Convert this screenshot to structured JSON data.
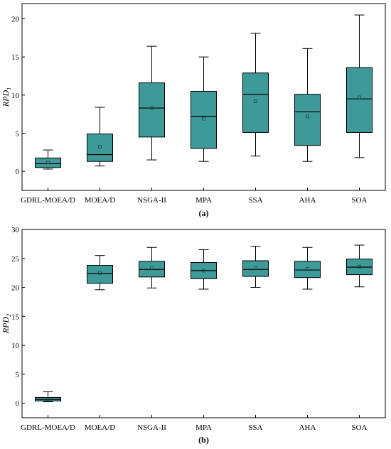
{
  "colors": {
    "box_fill": "#3e9a98",
    "stroke": "#000000",
    "background": "#ffffff"
  },
  "chart_data": [
    {
      "type": "box",
      "panel_label": "(a)",
      "ylabel_main": "RPD",
      "ylabel_sub": "1",
      "ylim": [
        -2.5,
        22
      ],
      "yticks": [
        0,
        5,
        10,
        15,
        20
      ],
      "categories": [
        "GDRL-MOEA/D",
        "MOEA/D",
        "NSGA-II",
        "MPA",
        "SSA",
        "AHA",
        "SOA"
      ],
      "boxes": [
        {
          "whisker_low": 0.3,
          "q1": 0.5,
          "median": 1.0,
          "q3": 1.75,
          "whisker_high": 2.8,
          "mean": 1.15
        },
        {
          "whisker_low": 0.7,
          "q1": 1.3,
          "median": 2.2,
          "q3": 4.9,
          "whisker_high": 8.4,
          "mean": 3.2
        },
        {
          "whisker_low": 1.5,
          "q1": 4.5,
          "median": 8.3,
          "q3": 11.6,
          "whisker_high": 16.4,
          "mean": 8.3
        },
        {
          "whisker_low": 1.3,
          "q1": 3.0,
          "median": 7.2,
          "q3": 10.5,
          "whisker_high": 15.0,
          "mean": 6.9
        },
        {
          "whisker_low": 2.0,
          "q1": 5.1,
          "median": 10.1,
          "q3": 12.9,
          "whisker_high": 18.1,
          "mean": 9.2
        },
        {
          "whisker_low": 1.3,
          "q1": 3.4,
          "median": 7.8,
          "q3": 10.1,
          "whisker_high": 16.1,
          "mean": 7.2
        },
        {
          "whisker_low": 1.8,
          "q1": 5.1,
          "median": 9.5,
          "q3": 13.6,
          "whisker_high": 20.5,
          "mean": 9.7
        }
      ]
    },
    {
      "type": "box",
      "panel_label": "(b)",
      "ylabel_main": "RPD",
      "ylabel_sub": "2",
      "ylim": [
        -2.5,
        30
      ],
      "yticks": [
        0,
        5,
        10,
        15,
        20,
        25,
        30
      ],
      "categories": [
        "GDRL-MOEA/D",
        "MOEA/D",
        "NSGA-II",
        "MPA",
        "SSA",
        "AHA",
        "SOA"
      ],
      "boxes": [
        {
          "whisker_low": 0.25,
          "q1": 0.4,
          "median": 0.65,
          "q3": 1.0,
          "whisker_high": 2.0,
          "mean": 0.7
        },
        {
          "whisker_low": 19.6,
          "q1": 20.7,
          "median": 22.4,
          "q3": 23.8,
          "whisker_high": 25.5,
          "mean": 22.5
        },
        {
          "whisker_low": 19.9,
          "q1": 21.8,
          "median": 23.1,
          "q3": 24.5,
          "whisker_high": 26.9,
          "mean": 23.3
        },
        {
          "whisker_low": 19.7,
          "q1": 21.5,
          "median": 22.9,
          "q3": 24.3,
          "whisker_high": 26.5,
          "mean": 22.9
        },
        {
          "whisker_low": 20.0,
          "q1": 21.9,
          "median": 23.1,
          "q3": 24.6,
          "whisker_high": 27.1,
          "mean": 23.3
        },
        {
          "whisker_low": 19.7,
          "q1": 21.7,
          "median": 23.0,
          "q3": 24.5,
          "whisker_high": 26.9,
          "mean": 23.2
        },
        {
          "whisker_low": 20.1,
          "q1": 22.2,
          "median": 23.5,
          "q3": 24.9,
          "whisker_high": 27.3,
          "mean": 23.6
        }
      ]
    }
  ]
}
